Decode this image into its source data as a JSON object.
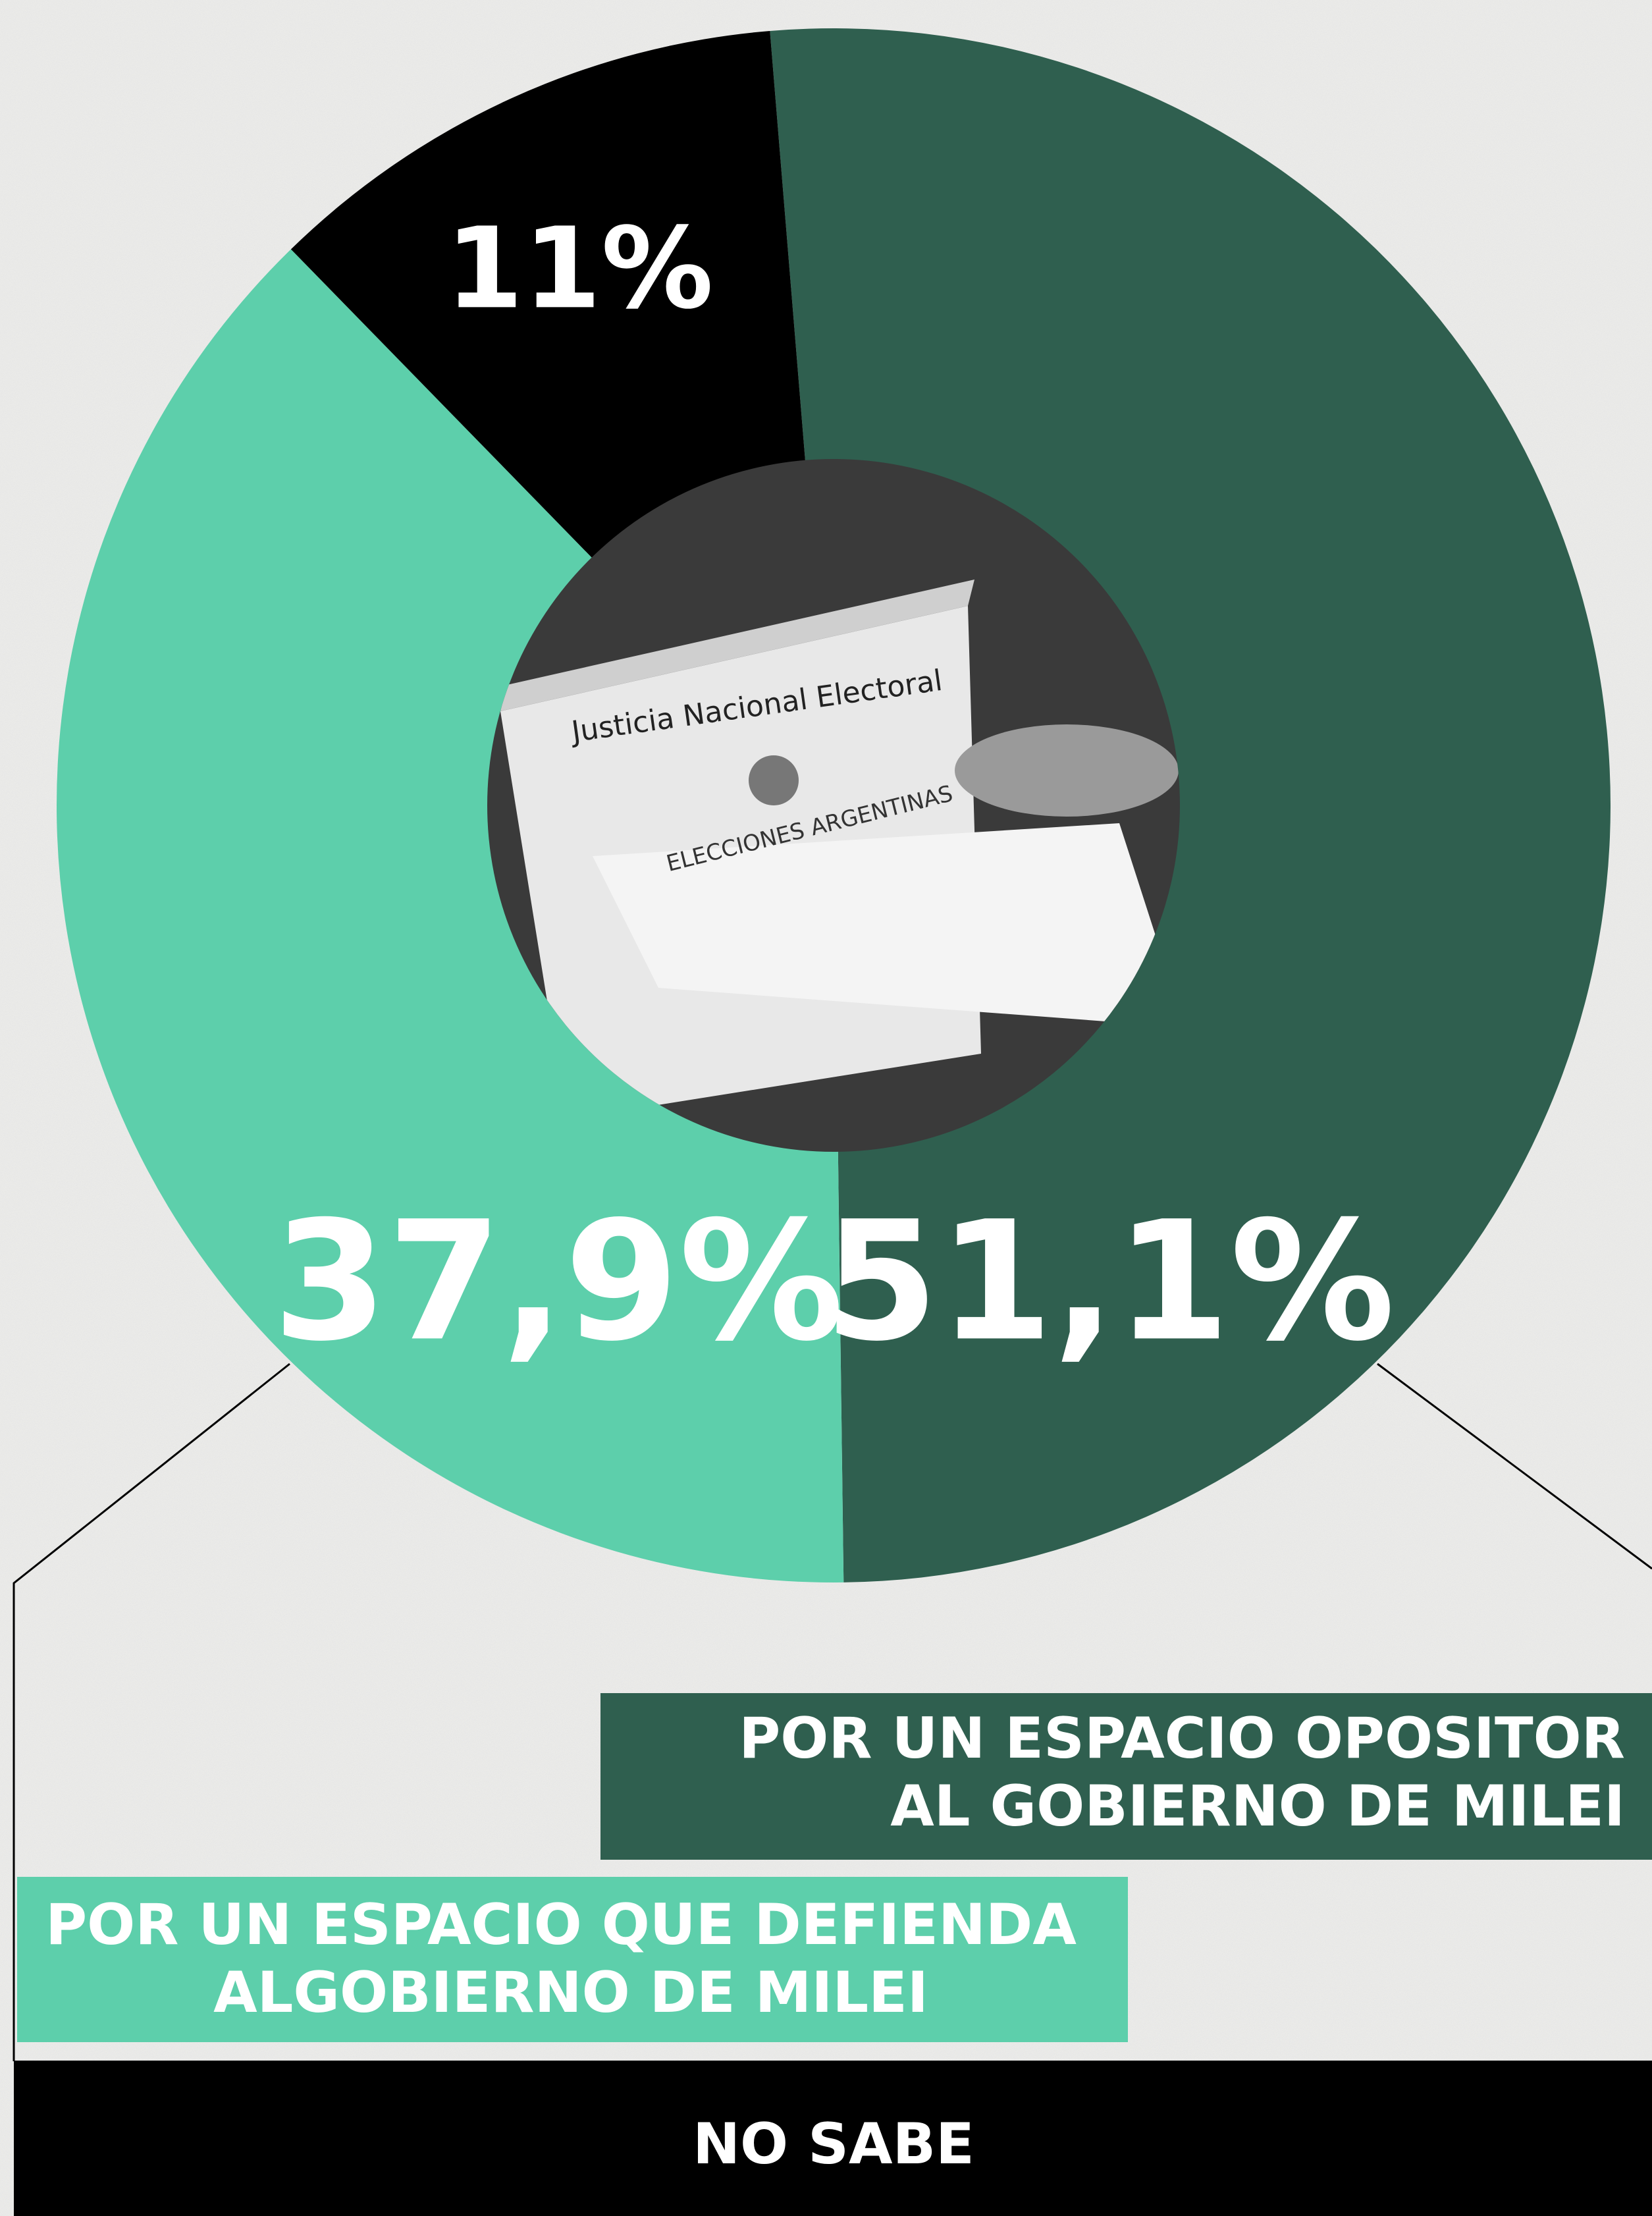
{
  "chart_data": {
    "type": "donut",
    "series": [
      {
        "name": "POR UN ESPACIO OPOSITOR AL GOBIERNO DE MILEI",
        "color": "#2f5f4f",
        "values": [
          51.1
        ],
        "value_labels": [
          "51,1%"
        ]
      },
      {
        "name": "POR UN ESPACIO QUE DEFIENDA ALGOBIERNO DE MILEI",
        "color": "#5dcfab",
        "values": [
          37.9
        ],
        "value_labels": [
          "37,9%"
        ]
      },
      {
        "name": "NO SABE",
        "color": "#000000",
        "values": [
          11
        ],
        "value_labels": [
          "11%"
        ]
      }
    ],
    "photo_texts": [
      "Justicia Nacional Electoral",
      "ELECCIONES ARGENTINAS"
    ]
  }
}
